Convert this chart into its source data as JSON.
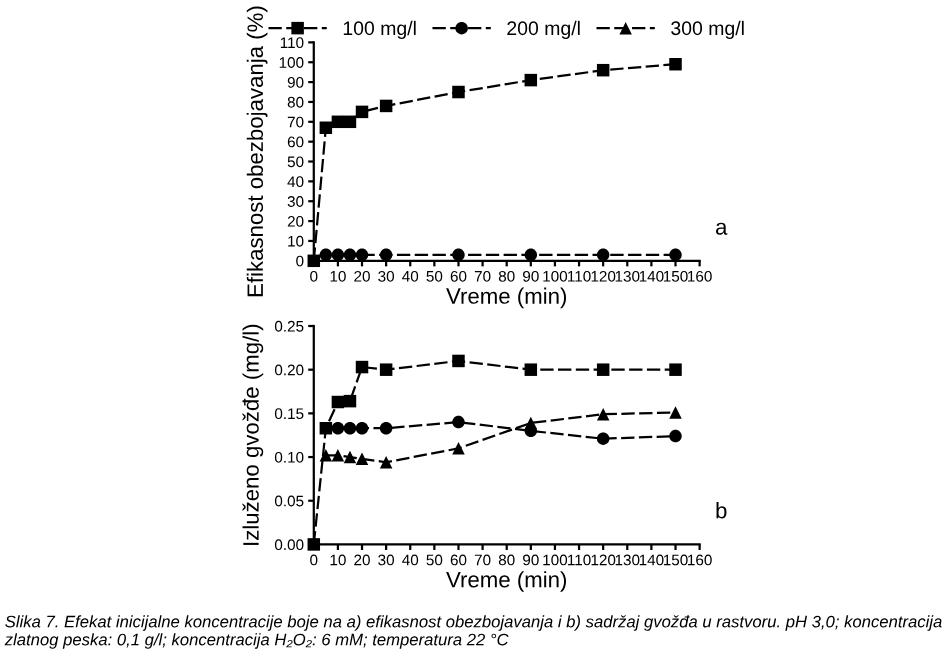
{
  "chart_data": [
    {
      "type": "line",
      "xlabel": "Vreme (min)",
      "ylabel": "Efikasnost obezbojavanja (%)",
      "legend": "top",
      "line_style": "dashed",
      "x": [
        0,
        5,
        10,
        15,
        20,
        30,
        60,
        90,
        120,
        150
      ],
      "series": [
        {
          "name": "100 mg/l",
          "color": "#000000",
          "marker": "square",
          "values": [
            0,
            67,
            70,
            70,
            75,
            78,
            85,
            91,
            96,
            99
          ]
        },
        {
          "name": "200 mg/l",
          "color": "#000000",
          "marker": "circle",
          "values": [
            null,
            3,
            3,
            3,
            3,
            3,
            3,
            3,
            3,
            3
          ]
        },
        {
          "name": "300 mg/l",
          "color": "#000000",
          "marker": "triangle",
          "values": [
            null,
            null,
            null,
            null,
            null,
            null,
            null,
            null,
            null,
            null
          ]
        }
      ],
      "xlim": [
        0,
        160
      ],
      "xticks": [
        0,
        10,
        20,
        30,
        40,
        50,
        60,
        70,
        80,
        90,
        100,
        110,
        120,
        130,
        140,
        150,
        160
      ],
      "ylim": [
        0,
        110
      ],
      "yticks": [
        0,
        10,
        20,
        30,
        40,
        50,
        60,
        70,
        80,
        90,
        100,
        110
      ],
      "annotations": [
        "a"
      ]
    },
    {
      "type": "line",
      "xlabel": "Vreme (min)",
      "ylabel": "Izluženo gvožđe (mg/l)",
      "line_style": "dashed",
      "x": [
        0,
        5,
        10,
        15,
        20,
        30,
        60,
        90,
        120,
        150
      ],
      "series": [
        {
          "color": "#000000",
          "marker": "square",
          "values": [
            0,
            0.133,
            0.163,
            0.164,
            0.203,
            0.2,
            0.21,
            0.2,
            0.2,
            0.2
          ]
        },
        {
          "color": "#000000",
          "marker": "circle",
          "values": [
            null,
            null,
            0.133,
            0.133,
            0.133,
            0.133,
            0.14,
            0.13,
            0.121,
            0.124
          ]
        },
        {
          "color": "#000000",
          "marker": "triangle",
          "values": [
            null,
            0.102,
            0.102,
            0.1,
            0.098,
            0.094,
            0.11,
            0.139,
            0.149,
            0.151
          ]
        }
      ],
      "xlim": [
        0,
        160
      ],
      "xticks": [
        0,
        10,
        20,
        30,
        40,
        50,
        60,
        70,
        80,
        90,
        100,
        110,
        120,
        130,
        140,
        150,
        160
      ],
      "ylim": [
        0,
        0.25
      ],
      "yticks": [
        {
          "value": 0,
          "label": "0.00"
        },
        {
          "value": 0.05,
          "label": "0.05"
        },
        {
          "value": 0.1,
          "label": "0.10"
        },
        {
          "value": 0.15,
          "label": "0.15"
        },
        {
          "value": 0.2,
          "label": "0.20"
        },
        {
          "value": 0.25,
          "label": "0.25"
        }
      ],
      "annotations": [
        "b",
        "Slika 7. Efekat inicijalne koncentracije boje na a) efikasnost obezbojavanja i b) sadržaj gvožđa u rastvoru. pH 3,0; koncentracija zlatnog peska: 0,1 g/l; koncentracija H₂O₂: 6 mM; temperatura 22 °C"
      ]
    }
  ]
}
